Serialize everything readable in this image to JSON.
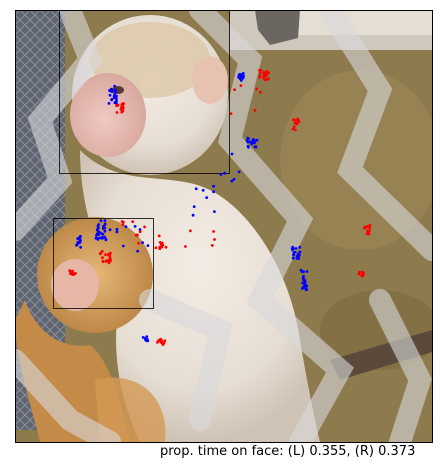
{
  "photo": {
    "subject": "rhesus-macaque-mother-and-infant-behind-chain-link-fence"
  },
  "face_boxes": [
    {
      "name": "adult-face"
    },
    {
      "name": "infant-face"
    }
  ],
  "gaze_series": [
    {
      "eye": "L",
      "color": "#0000ff"
    },
    {
      "eye": "R",
      "color": "#ff0000"
    }
  ],
  "caption": {
    "text": "prop. time on face: (L) 0.355, (R) 0.373"
  }
}
